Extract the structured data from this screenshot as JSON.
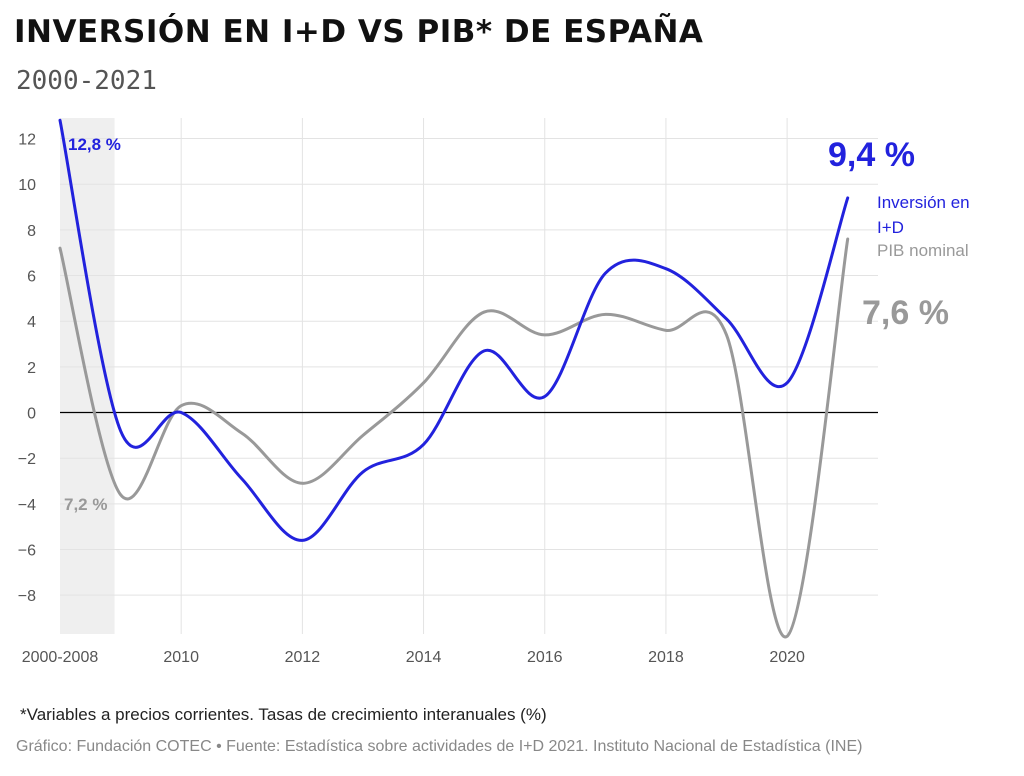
{
  "header": {
    "title": "INVERSIÓN EN I+D VS PIB* DE ESPAÑA",
    "subtitle": "2000-2021"
  },
  "footer": {
    "note": "*Variables a precios corrientes. Tasas de crecimiento interanuales (%)",
    "credit": "Gráfico: Fundación COTEC • Fuente: Estadística sobre actividades de I+D 2021. Instituto Nacional de Estadística (INE)"
  },
  "colors": {
    "rd": "#2222dd",
    "gdp": "#999999",
    "shade": "#efefef",
    "grid": "#e3e3e3",
    "zero": "#000000",
    "tick": "#555555"
  },
  "chart_data": {
    "type": "line",
    "x_ticks": [
      {
        "x": 2008,
        "label": "2000-2008"
      },
      {
        "x": 2010,
        "label": "2010"
      },
      {
        "x": 2012,
        "label": "2012"
      },
      {
        "x": 2014,
        "label": "2014"
      },
      {
        "x": 2016,
        "label": "2016"
      },
      {
        "x": 2018,
        "label": "2018"
      },
      {
        "x": 2020,
        "label": "2020"
      }
    ],
    "y_ticks": [
      12,
      10,
      8,
      6,
      4,
      2,
      0,
      -2,
      -4,
      -6,
      -8
    ],
    "y_tick_labels": [
      "12",
      "10",
      "8",
      "6",
      "4",
      "2",
      "0",
      "−2",
      "−4",
      "−6",
      "−8"
    ],
    "xlim": [
      2008,
      2021.5
    ],
    "ylim": [
      -9.7,
      12.9
    ],
    "shaded_period": {
      "x0": 2008,
      "x1": 2008.9
    },
    "series": [
      {
        "name": "Inversión en I+D",
        "legend_lines": [
          "Inversión en",
          "I+D"
        ],
        "points": [
          [
            2008,
            12.8
          ],
          [
            2009,
            -0.8
          ],
          [
            2010,
            0.0
          ],
          [
            2011,
            -2.9
          ],
          [
            2012,
            -5.6
          ],
          [
            2013,
            -2.6
          ],
          [
            2014,
            -1.4
          ],
          [
            2015,
            2.7
          ],
          [
            2016,
            0.7
          ],
          [
            2017,
            6.1
          ],
          [
            2018,
            6.3
          ],
          [
            2019,
            4.1
          ],
          [
            2020,
            1.3
          ],
          [
            2021,
            9.4
          ]
        ],
        "start_label": "12,8 %",
        "end_label": "9,4 %"
      },
      {
        "name": "PIB nominal",
        "legend_lines": [
          "PIB nominal"
        ],
        "points": [
          [
            2008,
            7.2
          ],
          [
            2009,
            -3.6
          ],
          [
            2010,
            0.3
          ],
          [
            2011,
            -0.9
          ],
          [
            2012,
            -3.1
          ],
          [
            2013,
            -1.0
          ],
          [
            2014,
            1.3
          ],
          [
            2015,
            4.4
          ],
          [
            2016,
            3.4
          ],
          [
            2017,
            4.3
          ],
          [
            2018,
            3.6
          ],
          [
            2019,
            3.4
          ],
          [
            2020,
            -9.8
          ],
          [
            2021,
            7.6
          ]
        ],
        "start_label": "7,2 %",
        "end_label": "7,6 %"
      }
    ]
  }
}
